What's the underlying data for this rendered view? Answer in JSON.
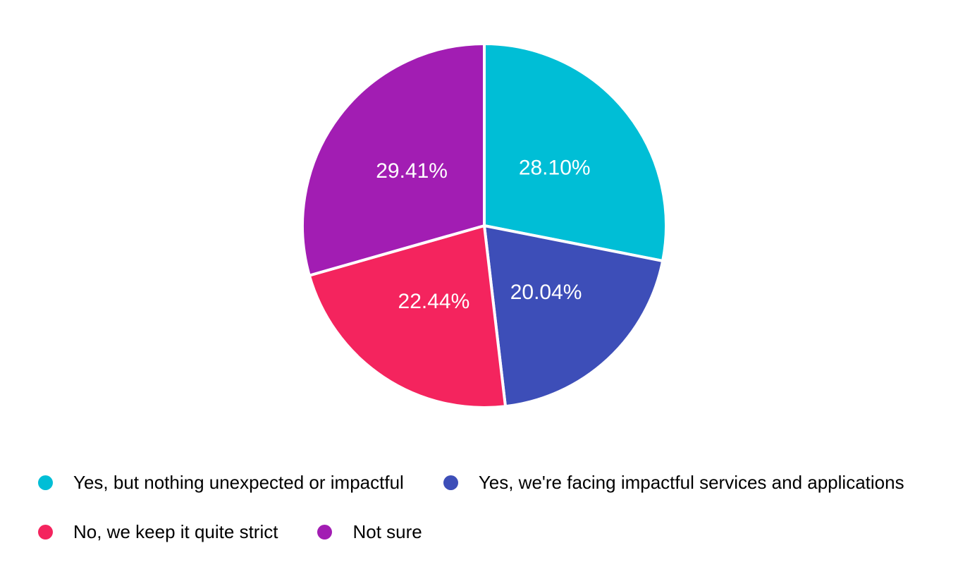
{
  "figure": {
    "background_color": "#ffffff"
  },
  "chart_data": {
    "type": "pie",
    "title": "",
    "unit": "%",
    "direction": "clockwise",
    "start_angle_deg": 0,
    "legend_position": "bottom",
    "slice_label_color": "#ffffff",
    "separator_color": "#ffffff",
    "slices": [
      {
        "label": "Yes, but nothing unexpected or impactful",
        "value": 28.1,
        "display": "28.10%",
        "color": "#00bed6"
      },
      {
        "label": "Yes, we're facing impactful services and applications",
        "value": 20.04,
        "display": "20.04%",
        "color": "#3d4eb8"
      },
      {
        "label": "No, we keep it quite strict",
        "value": 22.44,
        "display": "22.44%",
        "color": "#f4245e"
      },
      {
        "label": "Not sure",
        "value": 29.41,
        "display": "29.41%",
        "color": "#a21db3"
      }
    ]
  }
}
